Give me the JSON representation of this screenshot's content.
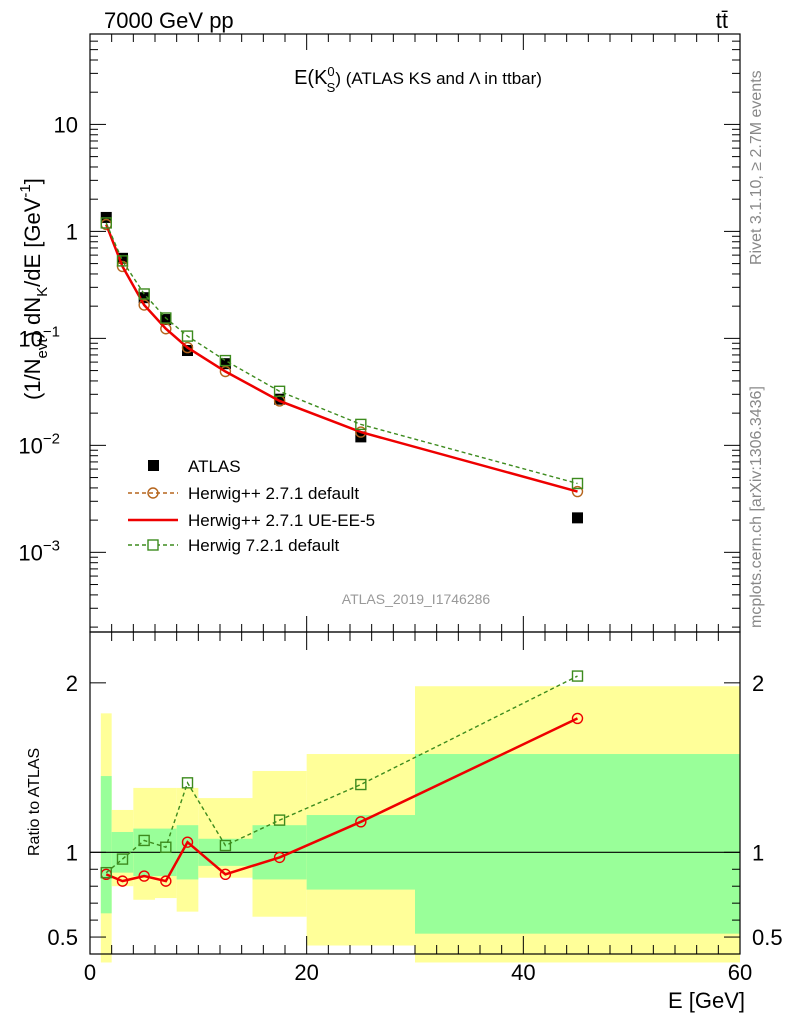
{
  "header": {
    "energy_label": "7000 GeV pp",
    "process_label": "tt̄"
  },
  "side_labels": {
    "rivet": "Rivet 3.1.10, ≥ 2.7M events",
    "mcplots": "mcplots.cern.ch [arXiv:1306.3436]"
  },
  "analysis_id": "ATLAS_2019_I1746286",
  "chart_data": [
    {
      "type": "line",
      "title": "E(K⁰S) (ATLAS KS and Λ in ttbar)",
      "title_parts": {
        "main": "E(K",
        "sup": "0",
        "sub": "S",
        "tail": ") (ATLAS KS and Λ in ttbar)"
      },
      "ylabel": "(1/Nevt) dNK/dE [GeV-1]",
      "ylabel_parts": {
        "a": "(1/N",
        "sub1": "evt",
        "b": ") dN",
        "sub2": "K",
        "c": "/dE [GeV",
        "sup": "-1",
        "d": "]"
      },
      "xlim": [
        0,
        60
      ],
      "ylim": [
        0.00018,
        70
      ],
      "log_y": true,
      "y_ticks": [
        {
          "value": 0.001,
          "label_base": "10",
          "label_exp": "−3"
        },
        {
          "value": 0.01,
          "label_base": "10",
          "label_exp": "−2"
        },
        {
          "value": 0.1,
          "label_base": "10",
          "label_exp": "−1"
        },
        {
          "value": 1,
          "label_base": "1",
          "label_exp": ""
        },
        {
          "value": 10,
          "label_base": "10",
          "label_exp": ""
        }
      ],
      "legend_position": "bottom-left",
      "series": [
        {
          "name": "ATLAS",
          "color": "#000000",
          "marker": "square-filled",
          "x": [
            1.5,
            3,
            5,
            7,
            9,
            12.5,
            17.5,
            25,
            45
          ],
          "y": [
            1.35,
            0.56,
            0.24,
            0.15,
            0.077,
            0.058,
            0.027,
            0.012,
            0.0021
          ]
        },
        {
          "name": "Herwig++ 2.7.1 default",
          "color": "#b5651d",
          "marker": "circle-open",
          "dashed": true,
          "x": [
            1.5,
            3,
            5,
            7,
            9,
            12.5,
            17.5,
            25,
            45
          ],
          "y": [
            1.16,
            0.47,
            0.205,
            0.123,
            0.082,
            0.049,
            0.026,
            0.0133,
            0.0037
          ]
        },
        {
          "name": "Herwig++ 2.7.1 UE-EE-5",
          "color": "#ee0000",
          "marker": "none",
          "x": [
            1.5,
            3,
            5,
            7,
            9,
            12.5,
            17.5,
            25,
            45
          ],
          "y": [
            1.16,
            0.47,
            0.205,
            0.123,
            0.082,
            0.049,
            0.026,
            0.0133,
            0.0037
          ]
        },
        {
          "name": "Herwig 7.2.1 default",
          "color": "#3d8b1e",
          "marker": "square-open",
          "dashed": true,
          "x": [
            1.5,
            3,
            5,
            7,
            9,
            12.5,
            17.5,
            25,
            45
          ],
          "y": [
            1.2,
            0.53,
            0.26,
            0.155,
            0.105,
            0.062,
            0.032,
            0.0157,
            0.0044
          ]
        }
      ]
    },
    {
      "type": "line",
      "title": "",
      "xlabel": "E [GeV]",
      "ylabel": "Ratio to ATLAS",
      "xlim": [
        0,
        60
      ],
      "ylim": [
        0.4,
        2.3
      ],
      "x_ticks": [
        0,
        20,
        40,
        60
      ],
      "y_ticks": [
        0.5,
        1,
        2
      ],
      "reference_line": 1,
      "bands": {
        "yellow_color": "#ffff99",
        "green_color": "#99ff99",
        "bins": [
          {
            "x0": 1,
            "x1": 2,
            "y_lo": 0.35,
            "y_hi": 1.82,
            "g_lo": 0.64,
            "g_hi": 1.45
          },
          {
            "x0": 2,
            "x1": 4,
            "y_lo": 0.8,
            "y_hi": 1.25,
            "g_lo": 0.88,
            "g_hi": 1.12
          },
          {
            "x0": 4,
            "x1": 6,
            "y_lo": 0.72,
            "y_hi": 1.38,
            "g_lo": 0.86,
            "g_hi": 1.14
          },
          {
            "x0": 6,
            "x1": 8,
            "y_lo": 0.73,
            "y_hi": 1.38,
            "g_lo": 0.86,
            "g_hi": 1.14
          },
          {
            "x0": 8,
            "x1": 10,
            "y_lo": 0.65,
            "y_hi": 1.38,
            "g_lo": 0.84,
            "g_hi": 1.16
          },
          {
            "x0": 10,
            "x1": 15,
            "y_lo": 0.85,
            "y_hi": 1.32,
            "g_lo": 0.92,
            "g_hi": 1.08
          },
          {
            "x0": 15,
            "x1": 20,
            "y_lo": 0.62,
            "y_hi": 1.48,
            "g_lo": 0.84,
            "g_hi": 1.16
          },
          {
            "x0": 20,
            "x1": 30,
            "y_lo": 0.45,
            "y_hi": 1.58,
            "g_lo": 0.78,
            "g_hi": 1.22
          },
          {
            "x0": 30,
            "x1": 60,
            "y_lo": 0.35,
            "y_hi": 1.98,
            "g_lo": 0.52,
            "g_hi": 1.58
          }
        ]
      },
      "series": [
        {
          "name": "Herwig++ 2.7.1 UE-EE-5",
          "color": "#ee0000",
          "marker": "circle-open",
          "x": [
            1.5,
            3,
            5,
            7,
            9,
            12.5,
            17.5,
            25,
            45
          ],
          "y": [
            0.87,
            0.83,
            0.86,
            0.83,
            1.06,
            0.87,
            0.97,
            1.18,
            1.79
          ]
        },
        {
          "name": "Herwig 7.2.1 default",
          "color": "#3d8b1e",
          "marker": "square-open",
          "dashed": true,
          "x": [
            1.5,
            3,
            5,
            7,
            9,
            12.5,
            17.5,
            25,
            45
          ],
          "y": [
            0.88,
            0.96,
            1.07,
            1.03,
            1.41,
            1.04,
            1.19,
            1.4,
            2.04
          ]
        }
      ]
    }
  ]
}
